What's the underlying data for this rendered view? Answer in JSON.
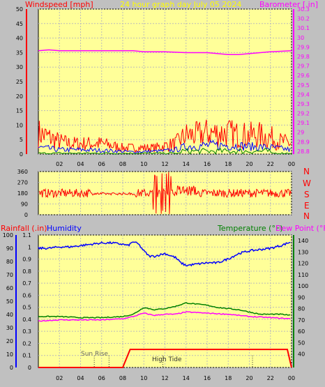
{
  "header": {
    "windspeed_label": "Windspeed [mph]",
    "title": "24 hour graph day   July 05 2024",
    "barometer_label": "Barometer [.in]"
  },
  "compass": [
    "N",
    "W",
    "S",
    "E",
    "N"
  ],
  "lower_header": {
    "rainfall_label": "Rainfall (.in)",
    "humidity_label": "Humidity",
    "temperature_label": "Temperature (°F)",
    "dewpoint_label": "Dew Point (°F)"
  },
  "annotations": {
    "sunrise": "Sun Rise",
    "hightide": "High Tide"
  },
  "colors": {
    "plot_bg": "#ffff99",
    "frame_bg": "#c0c0c0",
    "wind_gust": "#ff0000",
    "wind_avg": "#0000ff",
    "wind_low": "#008000",
    "barometer": "#ff00ff",
    "direction": "#ff0000",
    "humidity": "#0000ff",
    "temperature": "#008000",
    "dewpoint": "#ff00ff",
    "rain": "#ff0000",
    "title": "#ffff00"
  },
  "chart_data": [
    {
      "type": "area",
      "name": "wind",
      "x_ticks": [
        "02",
        "04",
        "06",
        "08",
        "10",
        "12",
        "14",
        "16",
        "18",
        "20",
        "22",
        "00"
      ],
      "y_left_ticks": [
        "0",
        "5",
        "10",
        "15",
        "20",
        "25",
        "30",
        "35",
        "40",
        "45",
        "50"
      ],
      "y_left_range": [
        0,
        50
      ],
      "y_right_ticks": [
        "28.8",
        "28.9",
        "29",
        "29.1",
        "29.2",
        "29.3",
        "29.4",
        "29.5",
        "29.6",
        "29.7",
        "29.8",
        "29.9",
        "30",
        "30.1",
        "30.2",
        "30.3"
      ],
      "y_right_range": [
        28.77,
        30.3
      ],
      "gust_profile": [
        [
          0,
          10
        ],
        [
          1,
          8
        ],
        [
          2,
          6
        ],
        [
          3,
          5
        ],
        [
          4,
          5
        ],
        [
          5,
          5
        ],
        [
          6,
          5
        ],
        [
          7,
          4
        ],
        [
          8,
          3
        ],
        [
          9,
          3
        ],
        [
          10,
          3
        ],
        [
          11,
          3
        ],
        [
          12,
          4
        ],
        [
          13,
          5
        ],
        [
          14,
          9
        ],
        [
          15,
          9
        ],
        [
          16,
          10
        ],
        [
          17,
          10
        ],
        [
          18,
          10
        ],
        [
          19,
          9
        ],
        [
          20,
          9
        ],
        [
          21,
          9
        ],
        [
          22,
          8
        ],
        [
          23,
          6
        ],
        [
          24,
          5
        ]
      ],
      "avg_profile": [
        [
          0,
          3
        ],
        [
          2,
          2
        ],
        [
          4,
          2
        ],
        [
          7,
          1.5
        ],
        [
          9,
          1
        ],
        [
          12,
          1.5
        ],
        [
          13,
          2
        ],
        [
          14,
          3.5
        ],
        [
          16,
          4
        ],
        [
          18,
          4
        ],
        [
          20,
          3.5
        ],
        [
          22,
          3
        ],
        [
          24,
          2
        ]
      ],
      "barometer_series": [
        [
          0,
          29.86
        ],
        [
          1,
          29.87
        ],
        [
          2,
          29.86
        ],
        [
          4,
          29.86
        ],
        [
          6,
          29.86
        ],
        [
          8,
          29.86
        ],
        [
          9,
          29.86
        ],
        [
          10,
          29.85
        ],
        [
          12,
          29.85
        ],
        [
          14,
          29.84
        ],
        [
          16,
          29.84
        ],
        [
          18,
          29.82
        ],
        [
          19,
          29.82
        ],
        [
          20,
          29.83
        ],
        [
          22,
          29.85
        ],
        [
          24,
          29.86
        ]
      ]
    },
    {
      "type": "scatter",
      "name": "wind-direction",
      "y_ticks": [
        "0",
        "90",
        "180",
        "270",
        "360"
      ],
      "y_range": [
        0,
        360
      ],
      "x_ticks": [
        "02",
        "04",
        "06",
        "08",
        "10",
        "12",
        "14",
        "16",
        "18",
        "20",
        "22",
        "00"
      ]
    },
    {
      "type": "line",
      "name": "humidity-temperature",
      "x_ticks": [
        "02",
        "04",
        "06",
        "08",
        "10",
        "12",
        "14",
        "16",
        "18",
        "20",
        "22",
        "00"
      ],
      "y_left_ticks": [
        "0",
        "0.1",
        "0.2",
        "0.3",
        "0.4",
        "0.5",
        "0.6",
        "0.7",
        "0.8",
        "0.9",
        "1",
        "1.1"
      ],
      "y_left_range": [
        0,
        1.1
      ],
      "y_humidity_ticks": [
        "0",
        "10",
        "20",
        "30",
        "40",
        "50",
        "60",
        "70",
        "80",
        "90",
        "100"
      ],
      "y_humidity_range": [
        0,
        100
      ],
      "y_right_ticks": [
        "40",
        "50",
        "60",
        "70",
        "80",
        "90",
        "100",
        "110",
        "120",
        "130",
        "140"
      ],
      "y_right_range": [
        28,
        145
      ],
      "humidity": [
        [
          0,
          90
        ],
        [
          1,
          90
        ],
        [
          2,
          91
        ],
        [
          3,
          91
        ],
        [
          4,
          92
        ],
        [
          5,
          93
        ],
        [
          6,
          94
        ],
        [
          7,
          94
        ],
        [
          8,
          93
        ],
        [
          8.5,
          92
        ],
        [
          9,
          95
        ],
        [
          9.5,
          93
        ],
        [
          10,
          88
        ],
        [
          10.5,
          84
        ],
        [
          11,
          84
        ],
        [
          12,
          86
        ],
        [
          13,
          83
        ],
        [
          13.5,
          79
        ],
        [
          14,
          77
        ],
        [
          15,
          78
        ],
        [
          16,
          79
        ],
        [
          17,
          79
        ],
        [
          18,
          82
        ],
        [
          19,
          86
        ],
        [
          20,
          88
        ],
        [
          21,
          89
        ],
        [
          22,
          90
        ],
        [
          23,
          92
        ],
        [
          24,
          95
        ]
      ],
      "temperature": [
        [
          0,
          73
        ],
        [
          2,
          73
        ],
        [
          4,
          72
        ],
        [
          6,
          72
        ],
        [
          8,
          73
        ],
        [
          9,
          75
        ],
        [
          10,
          81
        ],
        [
          11,
          79
        ],
        [
          12,
          80
        ],
        [
          13,
          82
        ],
        [
          14,
          85
        ],
        [
          15,
          84
        ],
        [
          16,
          83
        ],
        [
          17,
          81
        ],
        [
          18,
          80
        ],
        [
          19,
          79
        ],
        [
          20,
          77
        ],
        [
          21,
          75
        ],
        [
          22,
          75
        ],
        [
          23,
          75
        ],
        [
          24,
          74
        ]
      ],
      "dewpoint": [
        [
          0,
          69
        ],
        [
          2,
          70
        ],
        [
          4,
          70
        ],
        [
          6,
          70
        ],
        [
          8,
          71
        ],
        [
          9,
          73
        ],
        [
          10,
          76
        ],
        [
          11,
          74
        ],
        [
          12,
          75
        ],
        [
          13,
          75
        ],
        [
          14,
          77
        ],
        [
          16,
          76
        ],
        [
          18,
          75
        ],
        [
          20,
          73
        ],
        [
          22,
          72
        ],
        [
          24,
          71
        ]
      ],
      "rain": [
        [
          0,
          0
        ],
        [
          8,
          0
        ],
        [
          8.7,
          0.15
        ],
        [
          20,
          0.15
        ],
        [
          23.6,
          0.15
        ],
        [
          24,
          0
        ]
      ]
    }
  ]
}
